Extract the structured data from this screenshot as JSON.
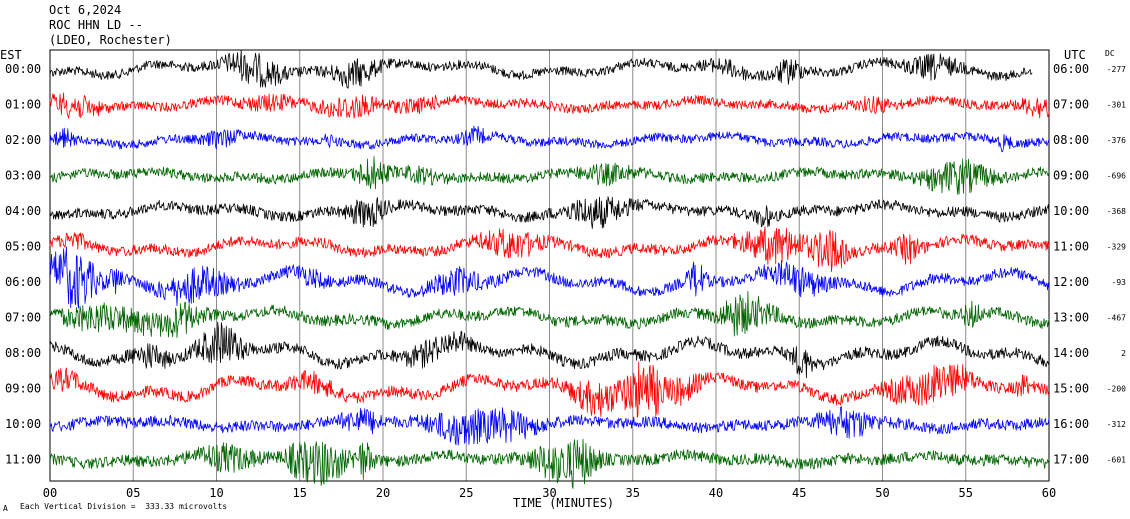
{
  "header": {
    "date": "Oct 6,2024",
    "station": "ROC HHN LD --",
    "network": "(LDEO, Rochester)"
  },
  "footer": {
    "scale_note": "Each Vertical Division =  333.33 microvolts",
    "corner_mark": "A"
  },
  "chart_data": {
    "type": "line",
    "subtype": "helicorder seismogram",
    "left_axis_title": "EST",
    "right_axis_title": "UTC",
    "dc_title": "DC",
    "xlabel": "TIME (MINUTES)",
    "xlim": [
      0,
      60
    ],
    "x_ticks": [
      "00",
      "05",
      "10",
      "15",
      "20",
      "25",
      "30",
      "35",
      "40",
      "45",
      "50",
      "55",
      "60"
    ],
    "x_gridlines_every_minutes": 5,
    "trace_colors": [
      "#000000",
      "#ff0000",
      "#0000ff",
      "#006400"
    ],
    "rows": [
      {
        "est": "00:00",
        "utc": "06:00",
        "dc": "-277",
        "color": "#000000",
        "activity": 0.55,
        "end_minute": 59
      },
      {
        "est": "01:00",
        "utc": "07:00",
        "dc": "-301",
        "color": "#ff0000",
        "activity": 0.55,
        "end_minute": 60
      },
      {
        "est": "02:00",
        "utc": "08:00",
        "dc": "-376",
        "color": "#0000ff",
        "activity": 0.5,
        "end_minute": 60
      },
      {
        "est": "03:00",
        "utc": "09:00",
        "dc": "-696",
        "color": "#006400",
        "activity": 0.7,
        "end_minute": 60
      },
      {
        "est": "04:00",
        "utc": "10:00",
        "dc": "-368",
        "color": "#000000",
        "activity": 0.8,
        "end_minute": 60
      },
      {
        "est": "05:00",
        "utc": "11:00",
        "dc": "-329",
        "color": "#ff0000",
        "activity": 0.8,
        "end_minute": 60
      },
      {
        "est": "06:00",
        "utc": "12:00",
        "dc": "-93",
        "color": "#0000ff",
        "activity": 0.85,
        "end_minute": 60
      },
      {
        "est": "07:00",
        "utc": "13:00",
        "dc": "-467",
        "color": "#006400",
        "activity": 0.9,
        "end_minute": 60
      },
      {
        "est": "08:00",
        "utc": "14:00",
        "dc": "2",
        "color": "#000000",
        "activity": 0.95,
        "end_minute": 60
      },
      {
        "est": "09:00",
        "utc": "15:00",
        "dc": "-200",
        "color": "#ff0000",
        "activity": 0.95,
        "end_minute": 60
      },
      {
        "est": "10:00",
        "utc": "16:00",
        "dc": "-312",
        "color": "#0000ff",
        "activity": 0.95,
        "end_minute": 60
      },
      {
        "est": "11:00",
        "utc": "17:00",
        "dc": "-601",
        "color": "#006400",
        "activity": 1.0,
        "end_minute": 60
      }
    ]
  }
}
